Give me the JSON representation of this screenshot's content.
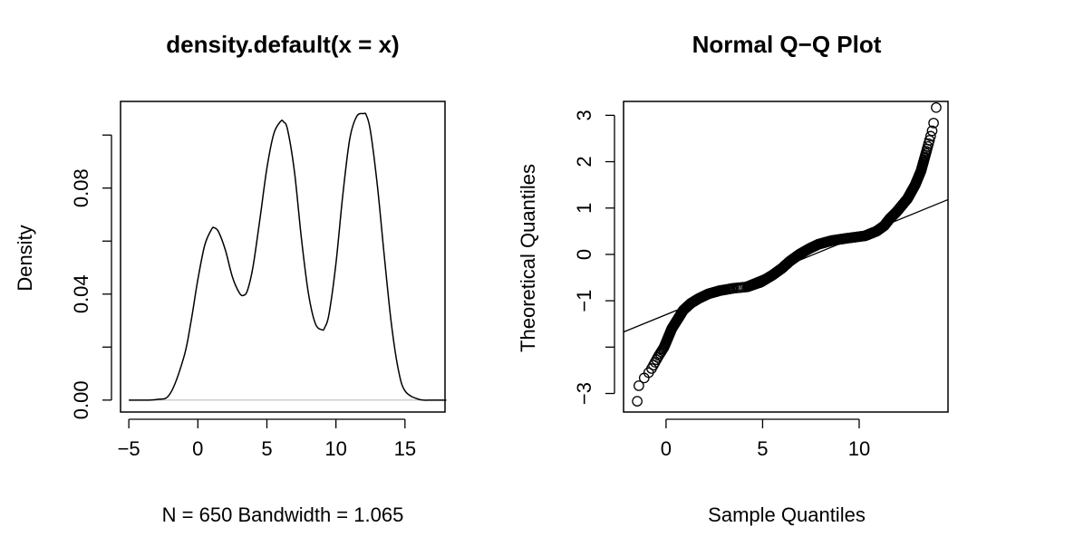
{
  "chart_data": [
    {
      "type": "line",
      "title": "density.default(x = x)",
      "xlabel": "N = 650   Bandwidth = 1.065",
      "ylabel": "Density",
      "xlim": [
        -5.6,
        17.9
      ],
      "ylim": [
        -0.0045,
        0.1127
      ],
      "x_ticks": [
        -5,
        0,
        5,
        10,
        15
      ],
      "x_tick_labels": [
        "−5",
        "0",
        "5",
        "10",
        "15"
      ],
      "y_ticks": [
        0.0,
        0.02,
        0.04,
        0.06,
        0.08,
        0.1
      ],
      "y_tick_labels": [
        "0.00",
        "",
        "0.04",
        "",
        "0.08",
        ""
      ],
      "baseline": 0,
      "series": [
        {
          "x": [
            -5,
            -3,
            -2,
            -1,
            -0.5,
            0,
            0.5,
            1,
            1.2,
            1.5,
            2,
            2.5,
            3,
            3.3,
            3.6,
            4,
            4.5,
            5,
            5.5,
            6,
            6.2,
            6.5,
            7,
            7.5,
            8,
            8.5,
            9,
            9.2,
            9.5,
            10,
            10.5,
            11,
            11.5,
            12,
            12.2,
            12.5,
            13,
            13.5,
            14,
            14.5,
            15,
            16,
            17,
            18
          ],
          "y": [
            0,
            0.0002,
            0.0025,
            0.0165,
            0.0295,
            0.0455,
            0.0585,
            0.0645,
            0.065,
            0.0635,
            0.0565,
            0.0465,
            0.0405,
            0.0395,
            0.0415,
            0.0505,
            0.0685,
            0.0875,
            0.1005,
            0.1052,
            0.105,
            0.102,
            0.086,
            0.061,
            0.0405,
            0.029,
            0.0265,
            0.0275,
            0.0325,
            0.0515,
            0.0775,
            0.0985,
            0.107,
            0.1081,
            0.1075,
            0.1015,
            0.081,
            0.0545,
            0.0295,
            0.012,
            0.0035,
            0.0003,
            0,
            0
          ]
        }
      ]
    },
    {
      "type": "scatter",
      "title": "Normal Q−Q Plot",
      "xlabel": "Sample Quantiles",
      "ylabel": "Theoretical Quantiles",
      "xlim": [
        -2.2,
        14.6
      ],
      "ylim": [
        -3.4,
        3.3
      ],
      "x_ticks": [
        0,
        5,
        10
      ],
      "x_tick_labels": [
        "0",
        "5",
        "10"
      ],
      "y_ticks": [
        -3,
        -2,
        -1,
        0,
        1,
        2,
        3
      ],
      "y_tick_labels": [
        "−3",
        "",
        "−1",
        "0",
        "1",
        "2",
        "3"
      ],
      "reference_line": {
        "intercept": -1.3,
        "slope": 0.17
      },
      "curve_anchor_points": {
        "q": [
          -3.2,
          -2.8,
          -2.5,
          -2.2,
          -2,
          -1.8,
          -1.6,
          -1.4,
          -1.2,
          -1.05,
          -0.95,
          -0.85,
          -0.78,
          -0.73,
          -0.7,
          -0.6,
          -0.45,
          -0.3,
          -0.15,
          0,
          0.12,
          0.22,
          0.3,
          0.35,
          0.4,
          0.5,
          0.62,
          0.78,
          0.9,
          1.0,
          1.2,
          1.5,
          1.8,
          2.1,
          2.4,
          2.7,
          3.2
        ],
        "x": [
          -1.5,
          -1.4,
          -0.8,
          -0.4,
          -0.1,
          0.1,
          0.3,
          0.6,
          0.9,
          1.3,
          1.7,
          2.2,
          2.8,
          3.5,
          4.2,
          4.9,
          5.5,
          6.0,
          6.4,
          6.9,
          7.4,
          7.9,
          8.6,
          9.4,
          10.3,
          10.9,
          11.3,
          11.6,
          11.9,
          12.1,
          12.5,
          12.9,
          13.2,
          13.4,
          13.6,
          13.8,
          14.0
        ]
      }
    }
  ]
}
